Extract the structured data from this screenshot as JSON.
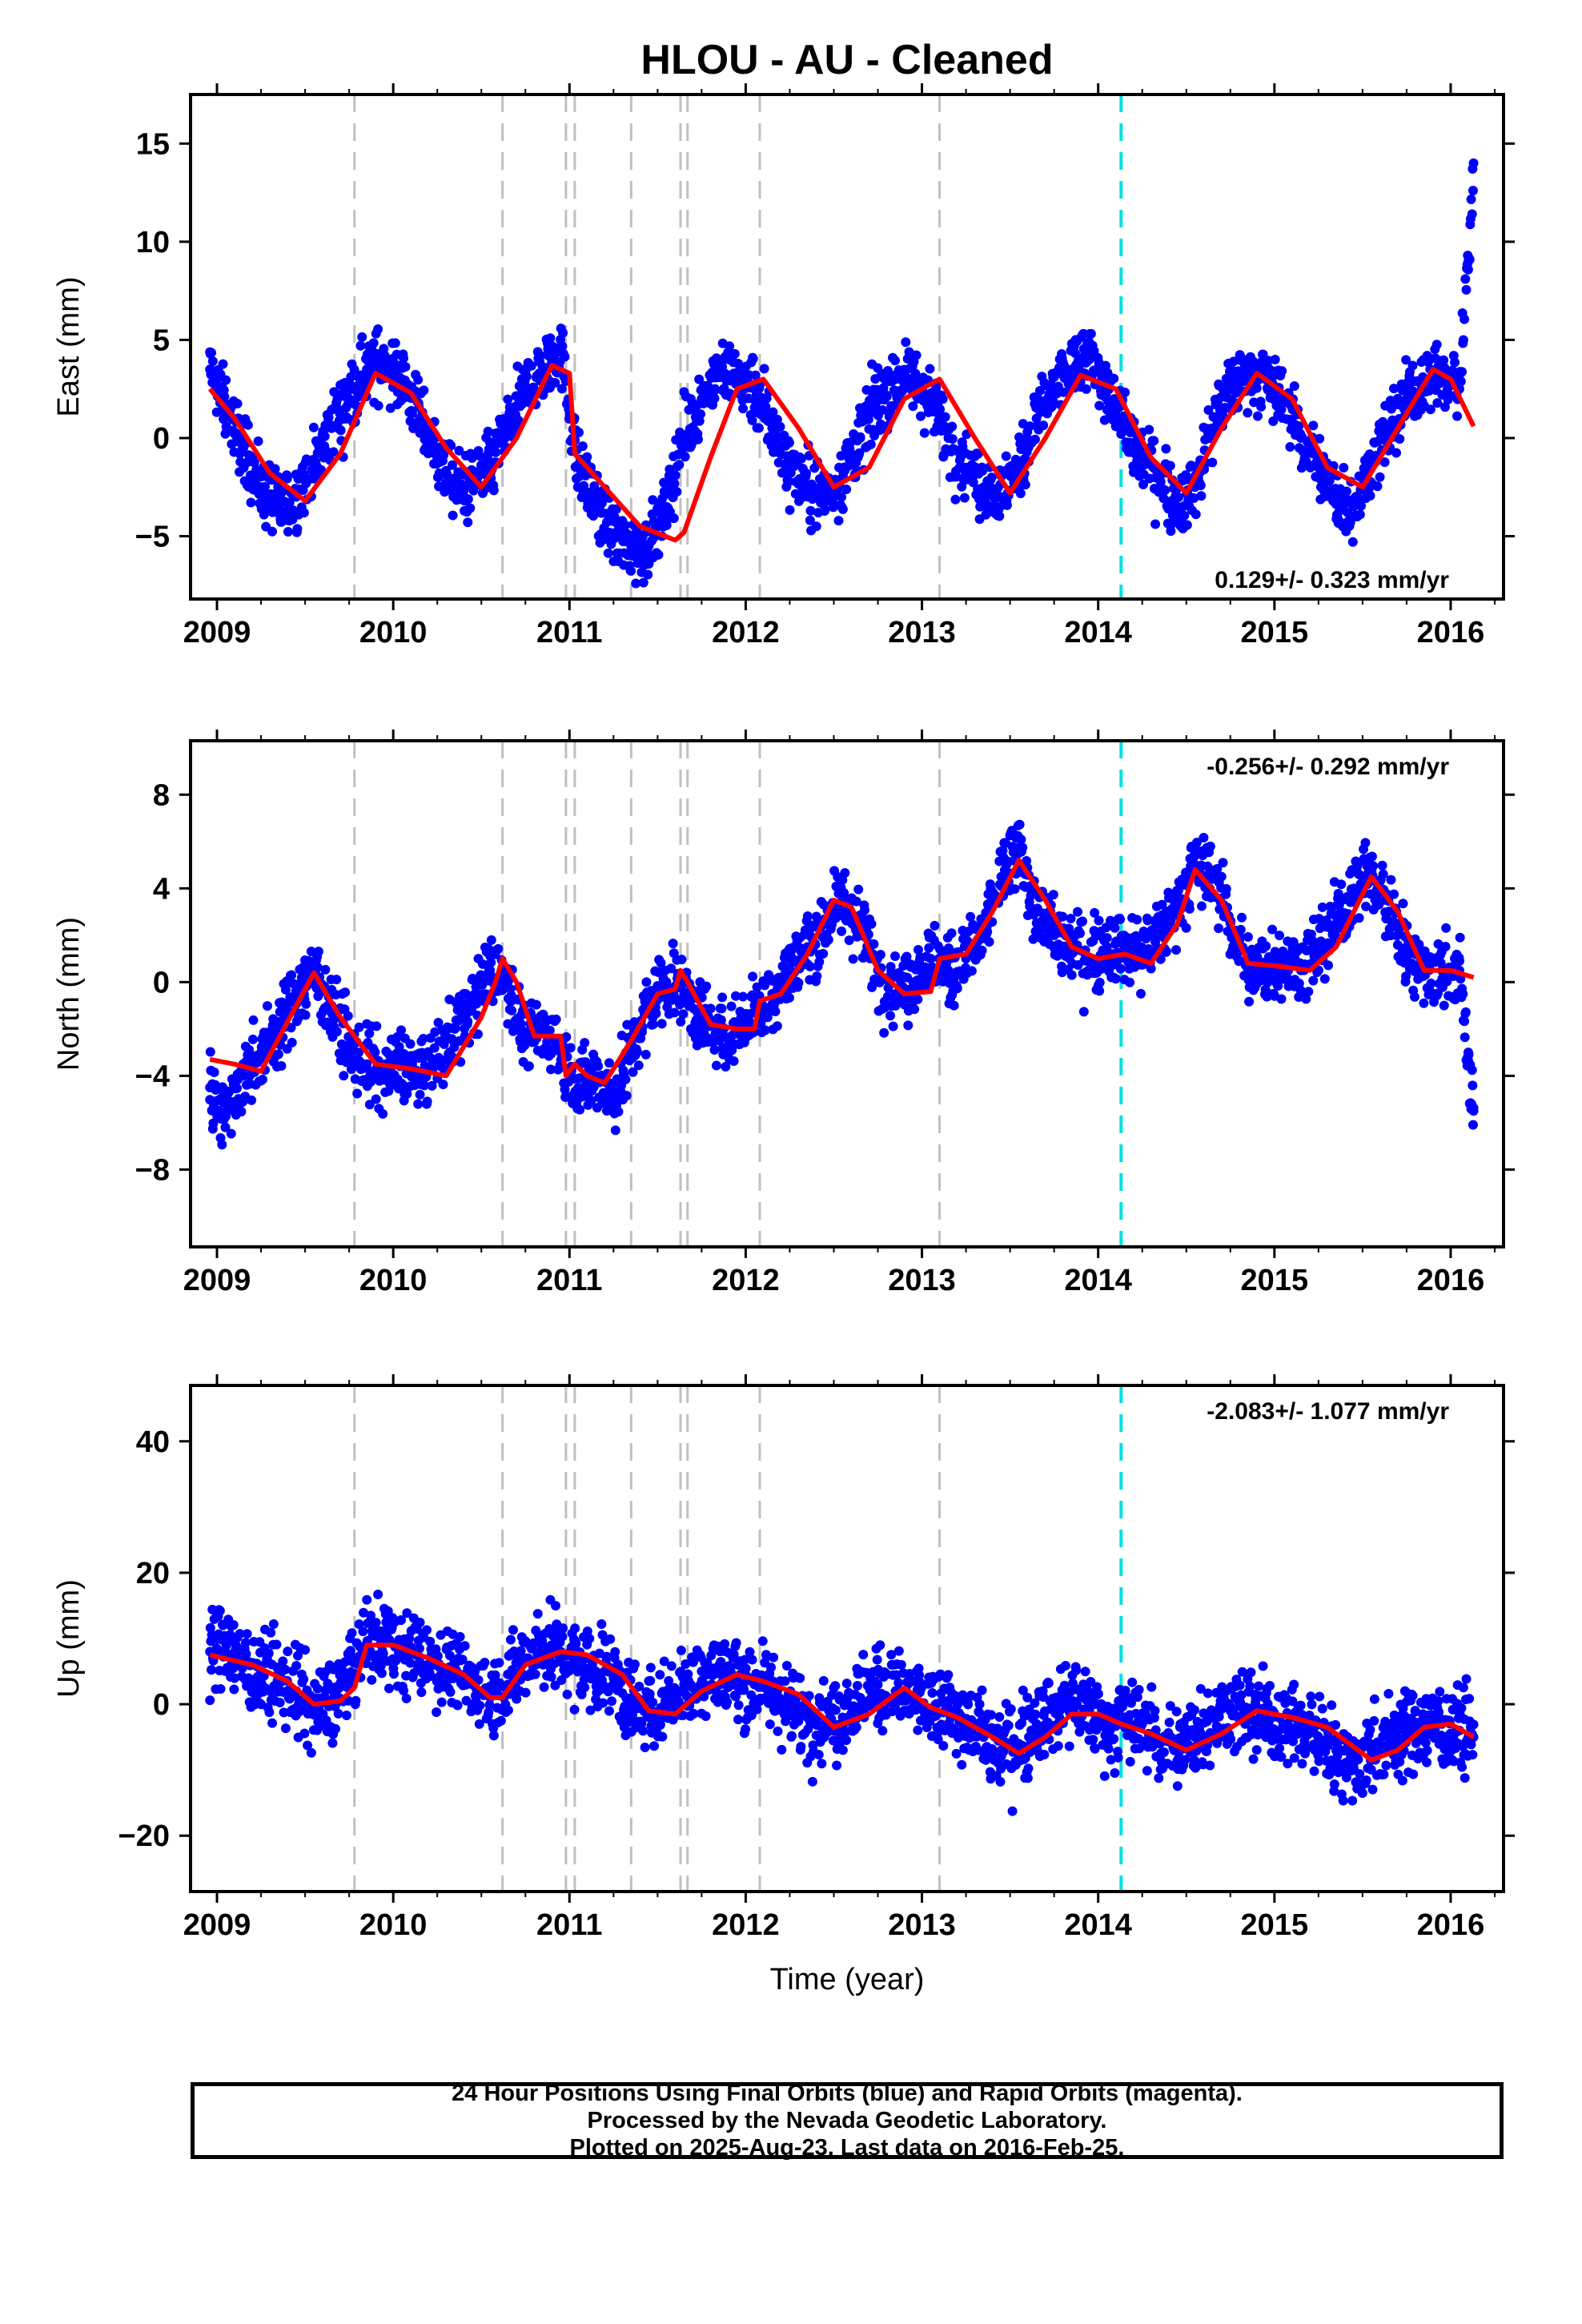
{
  "title": "HLOU  - AU - Cleaned",
  "colors": {
    "final_orbits": "#0000ff",
    "rapid_orbits": "#ff00ff",
    "model_fit": "#ff0000",
    "equipment_change": "#c0c0c0",
    "earthquake": "#00e0e0",
    "axes": "#000000"
  },
  "chart_data": [
    {
      "type": "scatter",
      "component": "East",
      "ylabel": "East (mm)",
      "xlabel": "",
      "xlim": [
        2008.85,
        2016.3
      ],
      "ylim": [
        -8.2,
        17.5
      ],
      "xticks": [
        "2009",
        "2010",
        "2011",
        "2012",
        "2013",
        "2014",
        "2015",
        "2016"
      ],
      "yticks": [
        -5,
        0,
        5,
        10,
        15
      ],
      "yticklabels": [
        "−5",
        "0",
        "5",
        "10",
        "15"
      ],
      "rate_label": "0.129+/- 0.323 mm/yr",
      "rate_position": "bottom-right",
      "grid": false,
      "series": [
        {
          "marker": "dot",
          "x": [
            2008.96,
            2009.05,
            2009.15,
            2009.25,
            2009.35,
            2009.45,
            2009.55,
            2009.65,
            2009.75,
            2009.85,
            2009.95,
            2010.05,
            2010.15,
            2010.25,
            2010.35,
            2010.45,
            2010.55,
            2010.65,
            2010.75,
            2010.85,
            2010.95,
            2011.05,
            2011.15,
            2011.25,
            2011.35,
            2011.45,
            2011.55,
            2011.65,
            2011.75,
            2011.85,
            2011.95,
            2012.05,
            2012.15,
            2012.25,
            2012.35,
            2012.45,
            2012.55,
            2012.65,
            2012.75,
            2012.85,
            2012.95,
            2013.05,
            2013.15,
            2013.25,
            2013.35,
            2013.45,
            2013.55,
            2013.65,
            2013.75,
            2013.85,
            2013.95,
            2014.05,
            2014.15,
            2014.25,
            2014.35,
            2014.45,
            2014.55,
            2014.65,
            2014.75,
            2014.85,
            2014.95,
            2015.05,
            2015.15,
            2015.25,
            2015.35,
            2015.45,
            2015.55,
            2015.65,
            2015.75,
            2015.85,
            2015.95,
            2016.05,
            2016.1,
            2016.13
          ],
          "y": [
            3.5,
            1.5,
            -0.5,
            -2.5,
            -3.5,
            -3.0,
            -1.5,
            0.5,
            2.0,
            3.5,
            4.0,
            3.0,
            1.0,
            -1.0,
            -2.5,
            -2.5,
            -1.5,
            0.5,
            2.5,
            3.5,
            4.5,
            -1.5,
            -3.5,
            -5.0,
            -5.5,
            -5.5,
            -3.5,
            0.0,
            2.0,
            3.5,
            3.0,
            2.5,
            0.5,
            -1.5,
            -2.5,
            -3.0,
            -2.0,
            0.0,
            2.0,
            3.0,
            3.0,
            2.0,
            0.0,
            -1.5,
            -2.5,
            -3.0,
            -1.5,
            1.0,
            2.5,
            3.5,
            4.0,
            2.5,
            0.5,
            -1.0,
            -2.0,
            -3.5,
            -2.5,
            0.5,
            2.5,
            3.5,
            3.0,
            2.0,
            0.0,
            -1.5,
            -3.0,
            -3.5,
            -1.5,
            0.5,
            2.0,
            3.0,
            3.0,
            2.5,
            9.0,
            14.0
          ]
        },
        {
          "name": "model",
          "line": true,
          "x": [
            2008.96,
            2009.1,
            2009.3,
            2009.5,
            2009.7,
            2009.9,
            2010.1,
            2010.3,
            2010.5,
            2010.7,
            2010.9,
            2011.0,
            2011.03,
            2011.2,
            2011.4,
            2011.6,
            2011.65,
            2011.8,
            2011.95,
            2012.1,
            2012.3,
            2012.5,
            2012.7,
            2012.9,
            2013.1,
            2013.3,
            2013.5,
            2013.7,
            2013.9,
            2014.1,
            2014.3,
            2014.5,
            2014.7,
            2014.9,
            2015.1,
            2015.3,
            2015.5,
            2015.7,
            2015.9,
            2016.0,
            2016.13
          ],
          "y": [
            2.5,
            1.0,
            -1.8,
            -3.2,
            -0.8,
            3.3,
            2.3,
            -0.5,
            -2.5,
            0.0,
            3.7,
            3.3,
            -0.8,
            -2.5,
            -4.5,
            -5.2,
            -4.8,
            -1.0,
            2.5,
            3.0,
            0.5,
            -2.5,
            -1.5,
            2.0,
            3.0,
            0.0,
            -2.8,
            0.0,
            3.2,
            2.5,
            -1.0,
            -2.8,
            0.5,
            3.3,
            2.0,
            -1.5,
            -2.5,
            0.5,
            3.5,
            3.0,
            0.6
          ]
        }
      ],
      "events": {
        "equipment": [
          2009.78,
          2010.62,
          2010.98,
          2011.03,
          2011.35,
          2011.63,
          2011.67,
          2012.08,
          2013.1
        ],
        "earthquake": [
          2014.13
        ]
      }
    },
    {
      "type": "scatter",
      "component": "North",
      "ylabel": "North (mm)",
      "xlabel": "",
      "xlim": [
        2008.85,
        2016.3
      ],
      "ylim": [
        -11.3,
        10.3
      ],
      "xticks": [
        "2009",
        "2010",
        "2011",
        "2012",
        "2013",
        "2014",
        "2015",
        "2016"
      ],
      "yticks": [
        -8,
        -4,
        0,
        4,
        8
      ],
      "yticklabels": [
        "−8",
        "−4",
        "0",
        "4",
        "8"
      ],
      "rate_label": "-0.256+/- 0.292 mm/yr",
      "rate_position": "top-right",
      "grid": false,
      "series": [
        {
          "marker": "dot",
          "x": [
            2008.96,
            2009.05,
            2009.15,
            2009.25,
            2009.35,
            2009.45,
            2009.55,
            2009.65,
            2009.75,
            2009.85,
            2009.95,
            2010.05,
            2010.15,
            2010.25,
            2010.35,
            2010.45,
            2010.55,
            2010.65,
            2010.75,
            2010.85,
            2010.95,
            2011.05,
            2011.15,
            2011.25,
            2011.35,
            2011.45,
            2011.55,
            2011.65,
            2011.75,
            2011.85,
            2011.95,
            2012.05,
            2012.15,
            2012.25,
            2012.35,
            2012.45,
            2012.55,
            2012.65,
            2012.75,
            2012.85,
            2012.95,
            2013.05,
            2013.15,
            2013.25,
            2013.35,
            2013.45,
            2013.55,
            2013.65,
            2013.75,
            2013.85,
            2013.95,
            2014.05,
            2014.15,
            2014.25,
            2014.35,
            2014.45,
            2014.55,
            2014.65,
            2014.75,
            2014.85,
            2014.95,
            2015.05,
            2015.15,
            2015.25,
            2015.35,
            2015.45,
            2015.55,
            2015.65,
            2015.75,
            2015.85,
            2015.95,
            2016.05,
            2016.1,
            2016.13
          ],
          "y": [
            -4.5,
            -5.5,
            -4.0,
            -3.0,
            -2.0,
            -0.5,
            0.5,
            -1.0,
            -3.0,
            -3.5,
            -4.0,
            -3.5,
            -4.0,
            -3.5,
            -2.0,
            -1.0,
            0.5,
            0.0,
            -2.5,
            -2.0,
            -3.0,
            -4.5,
            -4.0,
            -5.0,
            -3.0,
            -1.0,
            0.0,
            -0.5,
            -1.5,
            -2.5,
            -2.0,
            -1.0,
            -0.5,
            0.5,
            1.5,
            2.5,
            3.5,
            2.5,
            0.5,
            -0.5,
            0.0,
            1.0,
            0.5,
            1.0,
            2.0,
            4.5,
            5.5,
            3.0,
            2.0,
            1.5,
            1.0,
            1.5,
            1.5,
            1.0,
            2.0,
            3.5,
            5.0,
            4.5,
            2.5,
            0.5,
            0.5,
            1.0,
            0.5,
            1.5,
            2.5,
            4.0,
            4.5,
            3.0,
            1.5,
            0.5,
            0.5,
            0.5,
            -3.0,
            -5.5
          ]
        },
        {
          "name": "model",
          "line": true,
          "x": [
            2008.96,
            2009.1,
            2009.25,
            2009.45,
            2009.55,
            2009.7,
            2009.9,
            2010.1,
            2010.3,
            2010.5,
            2010.58,
            2010.62,
            2010.7,
            2010.8,
            2010.95,
            2010.98,
            2011.03,
            2011.1,
            2011.2,
            2011.35,
            2011.5,
            2011.6,
            2011.63,
            2011.67,
            2011.8,
            2011.95,
            2012.05,
            2012.08,
            2012.2,
            2012.35,
            2012.5,
            2012.6,
            2012.75,
            2012.9,
            2013.05,
            2013.1,
            2013.25,
            2013.4,
            2013.55,
            2013.7,
            2013.85,
            2014.0,
            2014.15,
            2014.3,
            2014.45,
            2014.55,
            2014.7,
            2014.85,
            2015.0,
            2015.2,
            2015.35,
            2015.55,
            2015.7,
            2015.85,
            2016.0,
            2016.13
          ],
          "y": [
            -3.3,
            -3.5,
            -3.8,
            -1.0,
            0.4,
            -1.5,
            -3.5,
            -3.7,
            -4.0,
            -1.5,
            0.0,
            1.0,
            0.0,
            -2.3,
            -2.3,
            -4.0,
            -3.5,
            -4.0,
            -4.3,
            -2.5,
            -0.5,
            -0.3,
            0.5,
            0.0,
            -1.8,
            -2.0,
            -2.0,
            -0.8,
            -0.5,
            1.2,
            3.5,
            3.2,
            0.5,
            -0.5,
            -0.4,
            1.0,
            1.2,
            3.0,
            5.2,
            3.5,
            1.5,
            1.0,
            1.2,
            0.8,
            2.5,
            4.8,
            3.5,
            0.8,
            0.7,
            0.5,
            1.5,
            4.5,
            3.0,
            0.5,
            0.5,
            0.2
          ]
        }
      ],
      "events": {
        "equipment": [
          2009.78,
          2010.62,
          2010.98,
          2011.03,
          2011.35,
          2011.63,
          2011.67,
          2012.08,
          2013.1
        ],
        "earthquake": [
          2014.13
        ]
      }
    },
    {
      "type": "scatter",
      "component": "Up",
      "ylabel": "Up (mm)",
      "xlabel": "Time (year)",
      "xlim": [
        2008.85,
        2016.3
      ],
      "ylim": [
        -28.5,
        48.5
      ],
      "xticks": [
        "2009",
        "2010",
        "2011",
        "2012",
        "2013",
        "2014",
        "2015",
        "2016"
      ],
      "yticks": [
        -20,
        0,
        20,
        40
      ],
      "yticklabels": [
        "−20",
        "0",
        "20",
        "40"
      ],
      "rate_label": "-2.083+/- 1.077 mm/yr",
      "rate_position": "top-right",
      "grid": false,
      "series": [
        {
          "marker": "dot",
          "x": [
            2008.96,
            2009.05,
            2009.15,
            2009.25,
            2009.35,
            2009.45,
            2009.55,
            2009.65,
            2009.75,
            2009.85,
            2009.95,
            2010.05,
            2010.15,
            2010.25,
            2010.35,
            2010.45,
            2010.55,
            2010.65,
            2010.75,
            2010.85,
            2010.95,
            2011.05,
            2011.15,
            2011.25,
            2011.35,
            2011.45,
            2011.55,
            2011.65,
            2011.75,
            2011.85,
            2011.95,
            2012.05,
            2012.15,
            2012.25,
            2012.35,
            2012.45,
            2012.55,
            2012.65,
            2012.75,
            2012.85,
            2012.95,
            2013.05,
            2013.15,
            2013.25,
            2013.35,
            2013.45,
            2013.55,
            2013.65,
            2013.75,
            2013.85,
            2013.95,
            2014.05,
            2014.15,
            2014.25,
            2014.35,
            2014.45,
            2014.55,
            2014.65,
            2014.75,
            2014.85,
            2014.95,
            2015.05,
            2015.15,
            2015.25,
            2015.35,
            2015.45,
            2015.55,
            2015.65,
            2015.75,
            2015.85,
            2015.95,
            2016.05,
            2016.1,
            2016.13
          ],
          "y": [
            8,
            10,
            6,
            5,
            3,
            2,
            -1,
            0,
            4,
            9,
            10,
            8,
            7,
            6,
            5,
            3,
            1,
            3,
            7,
            9,
            8,
            6,
            5,
            4,
            0,
            -2,
            1,
            3,
            5,
            5,
            4,
            3,
            2,
            0,
            -2,
            -3,
            -2,
            1,
            3,
            2,
            1,
            -1,
            -1,
            -3,
            -5,
            -7,
            -6,
            -3,
            -1,
            0,
            -1,
            -3,
            -2,
            -3,
            -6,
            -7,
            -5,
            -2,
            -1,
            -1,
            -2,
            -3,
            -4,
            -5,
            -7,
            -9,
            -7,
            -5,
            -4,
            -3,
            -3,
            -4,
            -5,
            -5
          ]
        },
        {
          "name": "model",
          "line": true,
          "x": [
            2008.96,
            2009.2,
            2009.4,
            2009.55,
            2009.7,
            2009.78,
            2009.85,
            2010.0,
            2010.2,
            2010.4,
            2010.55,
            2010.62,
            2010.75,
            2010.95,
            2011.1,
            2011.3,
            2011.45,
            2011.6,
            2011.75,
            2011.95,
            2012.1,
            2012.3,
            2012.5,
            2012.7,
            2012.9,
            2013.05,
            2013.2,
            2013.4,
            2013.55,
            2013.7,
            2013.85,
            2014.0,
            2014.13,
            2014.3,
            2014.5,
            2014.7,
            2014.9,
            2015.1,
            2015.3,
            2015.55,
            2015.7,
            2015.85,
            2016.0,
            2016.13
          ],
          "y": [
            7.5,
            6.0,
            3.5,
            0.0,
            0.5,
            2.5,
            9.0,
            9.0,
            7.0,
            4.5,
            1.0,
            1.0,
            6.0,
            8.0,
            7.5,
            4.5,
            -1.0,
            -1.5,
            2.0,
            4.5,
            3.5,
            1.5,
            -3.5,
            -1.5,
            2.5,
            -0.5,
            -2.0,
            -5.0,
            -7.5,
            -5.0,
            -1.5,
            -1.5,
            -3.0,
            -4.5,
            -7.0,
            -4.5,
            -1.0,
            -2.0,
            -3.5,
            -8.5,
            -7.0,
            -3.5,
            -3.0,
            -5.0
          ]
        }
      ],
      "events": {
        "equipment": [
          2009.78,
          2010.62,
          2010.98,
          2011.03,
          2011.35,
          2011.63,
          2011.67,
          2012.08,
          2013.1
        ],
        "earthquake": [
          2014.13
        ]
      }
    }
  ],
  "caption": {
    "line1": "24 Hour Positions Using Final Orbits (blue) and Rapid Orbits (magenta).",
    "line2": "Processed by the Nevada Geodetic Laboratory.",
    "line3": "Plotted on 2025-Aug-23. Last data on 2016-Feb-25."
  }
}
